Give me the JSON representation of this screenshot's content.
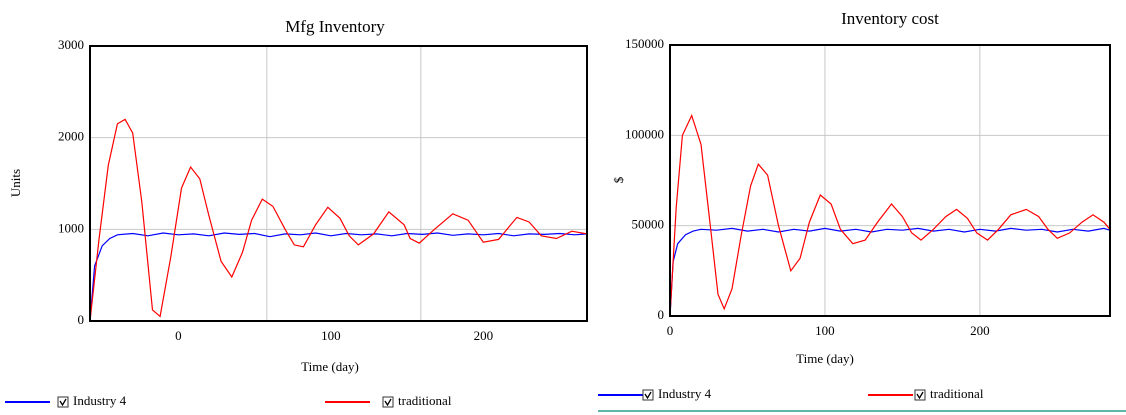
{
  "chart_data": [
    {
      "type": "line",
      "title": "Mfg Inventory",
      "xlabel": "Time (day)",
      "ylabel": "Units",
      "xlim": [
        -58,
        268
      ],
      "xticks": [
        0,
        100,
        200
      ],
      "xgrid": [
        58,
        159
      ],
      "ylim": [
        0,
        3000
      ],
      "yticks": [
        0,
        1000,
        2000,
        3000
      ],
      "grid": true,
      "series": [
        {
          "name": "Industry 4",
          "color": "#0000ff",
          "x": [
            -58,
            -55,
            -50,
            -45,
            -40,
            -30,
            -20,
            -10,
            0,
            10,
            20,
            30,
            40,
            50,
            60,
            70,
            80,
            90,
            100,
            110,
            120,
            130,
            140,
            150,
            160,
            170,
            180,
            190,
            200,
            210,
            220,
            230,
            240,
            250,
            260,
            268
          ],
          "values": [
            0,
            600,
            820,
            900,
            940,
            955,
            930,
            960,
            940,
            950,
            930,
            960,
            945,
            955,
            920,
            950,
            940,
            960,
            930,
            955,
            940,
            950,
            930,
            955,
            945,
            960,
            935,
            950,
            940,
            955,
            930,
            950,
            945,
            955,
            940,
            950
          ]
        },
        {
          "name": "traditional",
          "color": "#ff0000",
          "x": [
            -58,
            -52,
            -46,
            -40,
            -35,
            -30,
            -24,
            -17,
            -12,
            -5,
            2,
            8,
            14,
            20,
            28,
            35,
            42,
            48,
            55,
            62,
            70,
            76,
            82,
            90,
            98,
            106,
            112,
            118,
            128,
            138,
            148,
            152,
            158,
            168,
            180,
            190,
            200,
            210,
            222,
            230,
            238,
            248,
            258,
            268
          ],
          "values": [
            0,
            900,
            1700,
            2150,
            2200,
            2050,
            1300,
            120,
            50,
            700,
            1450,
            1680,
            1550,
            1150,
            650,
            480,
            750,
            1100,
            1330,
            1250,
            1000,
            830,
            810,
            1050,
            1240,
            1120,
            930,
            830,
            950,
            1190,
            1050,
            900,
            850,
            1000,
            1170,
            1100,
            860,
            890,
            1130,
            1080,
            930,
            900,
            980,
            950
          ]
        }
      ]
    },
    {
      "type": "line",
      "title": "Inventory cost",
      "xlabel": "Time (day)",
      "ylabel": "$",
      "xlim": [
        0,
        284
      ],
      "xticks": [
        0,
        100,
        200
      ],
      "xgrid": [
        100,
        200
      ],
      "ylim": [
        0,
        150000
      ],
      "yticks": [
        0,
        50000,
        100000,
        150000
      ],
      "grid": true,
      "series": [
        {
          "name": "Industry 4",
          "color": "#0000ff",
          "x": [
            0,
            2,
            5,
            10,
            15,
            20,
            30,
            40,
            50,
            60,
            70,
            80,
            90,
            100,
            110,
            120,
            130,
            140,
            150,
            160,
            170,
            180,
            190,
            200,
            210,
            220,
            230,
            240,
            250,
            260,
            270,
            280,
            284
          ],
          "values": [
            0,
            30000,
            40000,
            45000,
            47000,
            48000,
            47500,
            48500,
            47000,
            48000,
            46500,
            48000,
            47000,
            48500,
            47000,
            48000,
            46500,
            48000,
            47500,
            48500,
            47000,
            48000,
            46500,
            48000,
            47000,
            48500,
            47500,
            48000,
            46500,
            48000,
            47000,
            48500,
            47500
          ]
        },
        {
          "name": "traditional",
          "color": "#ff0000",
          "x": [
            0,
            4,
            8,
            14,
            20,
            26,
            31,
            35,
            40,
            46,
            52,
            57,
            63,
            70,
            78,
            84,
            90,
            97,
            104,
            110,
            118,
            126,
            134,
            143,
            150,
            156,
            162,
            170,
            178,
            185,
            192,
            198,
            205,
            212,
            220,
            230,
            238,
            244,
            250,
            258,
            266,
            273,
            280,
            284
          ],
          "values": [
            0,
            60000,
            100000,
            111000,
            95000,
            50000,
            12000,
            4000,
            15000,
            45000,
            72000,
            84000,
            78000,
            50000,
            25000,
            32000,
            52000,
            67000,
            62000,
            48000,
            40000,
            42000,
            52000,
            62000,
            55000,
            46000,
            42000,
            48000,
            55000,
            59000,
            54000,
            46000,
            42000,
            48000,
            56000,
            59000,
            55000,
            48000,
            43000,
            46000,
            52000,
            56000,
            52000,
            48000
          ]
        }
      ]
    }
  ]
}
